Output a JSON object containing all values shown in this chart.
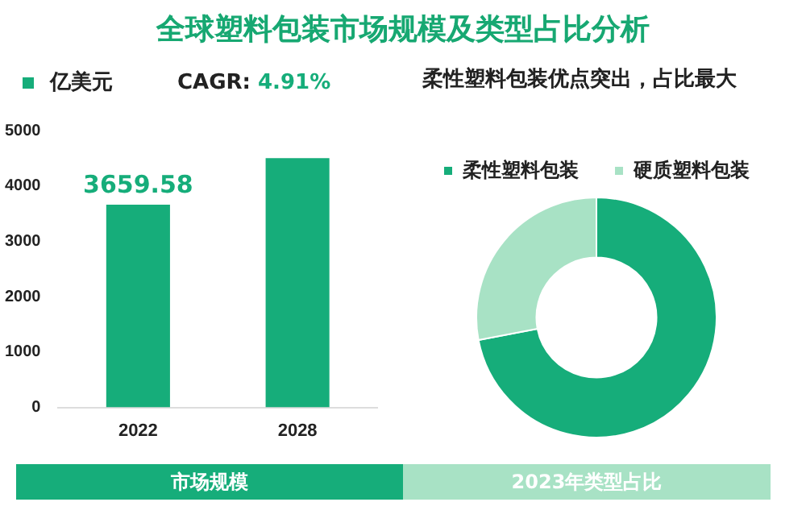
{
  "chart_data": [
    {
      "type": "bar",
      "title": "全球塑料包装市场规模及类型占比分析",
      "categories": [
        "2022",
        "2028"
      ],
      "series": [
        {
          "name": "亿美元",
          "color": "#16ad7a",
          "values": [
            3659.58,
            4500
          ]
        }
      ],
      "value_labels": [
        "3659.58",
        null
      ],
      "ylim": [
        0,
        5000
      ],
      "yticks": [
        0,
        1000,
        2000,
        3000,
        4000,
        5000
      ],
      "grid": false,
      "legend": "top left",
      "annotations": [
        "CAGR: 4.91%",
        "市场规模"
      ]
    },
    {
      "type": "donut",
      "title": "柔性塑料包装优点突出，占比最大",
      "categories": [
        "柔性塑料包装",
        "硬质塑料包装"
      ],
      "values": [
        72,
        28
      ],
      "colors": [
        "#16ad7a",
        "#a8e2c5"
      ],
      "legend": "top",
      "annotations": [
        "2023年类型占比"
      ]
    }
  ]
}
